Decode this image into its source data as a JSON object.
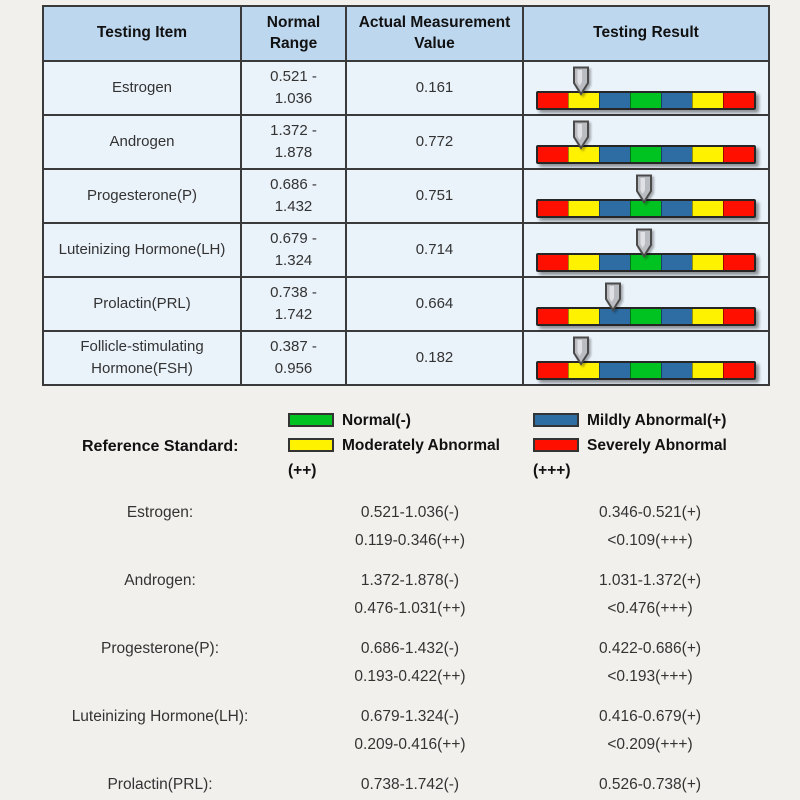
{
  "colors": {
    "red": "#FF0F00",
    "yellow": "#FFF200",
    "blue": "#2E6DA4",
    "green": "#00C322",
    "header_bg": "#BDD7EE",
    "cell_bg": "#EAF2FA",
    "page_bg": "#F2F0ED"
  },
  "table": {
    "headers": [
      "Testing Item",
      "Normal Range",
      "Actual Measurement Value",
      "Testing Result"
    ],
    "rows": [
      {
        "item": "Estrogen",
        "normal_range": "0.521 - 1.036",
        "actual_value": "0.161",
        "result_level": "moderately-abnormal",
        "arrow_percent": 20.5
      },
      {
        "item": "Androgen",
        "normal_range": "1.372 - 1.878",
        "actual_value": "0.772",
        "result_level": "moderately-abnormal",
        "arrow_percent": 20.5
      },
      {
        "item": "Progesterone(P)",
        "normal_range": "0.686 - 1.432",
        "actual_value": "0.751",
        "result_level": "normal",
        "arrow_percent": 49
      },
      {
        "item": "Luteinizing Hormone(LH)",
        "normal_range": "0.679 - 1.324",
        "actual_value": "0.714",
        "result_level": "normal",
        "arrow_percent": 49
      },
      {
        "item": "Prolactin(PRL)",
        "normal_range": "0.738 - 1.742",
        "actual_value": "0.664",
        "result_level": "mildly-abnormal",
        "arrow_percent": 35
      },
      {
        "item": "Follicle-stimulating Hormone(FSH)",
        "normal_range": "0.387 - 0.956",
        "actual_value": "0.182",
        "result_level": "moderately-abnormal",
        "arrow_percent": 20.5
      }
    ]
  },
  "result_bar": {
    "segment_colors": [
      "red",
      "yellow",
      "blue",
      "green",
      "blue",
      "yellow",
      "red"
    ]
  },
  "reference": {
    "title": "Reference Standard:",
    "legend": [
      {
        "color": "green",
        "label": "Normal(-)"
      },
      {
        "color": "blue",
        "label": "Mildly Abnormal(+)"
      },
      {
        "color": "yellow",
        "label": "Moderately Abnormal (++)"
      },
      {
        "color": "red",
        "label": "Severely Abnormal (+++)"
      }
    ],
    "entries": [
      {
        "label": "Estrogen:",
        "normal": "0.521-1.036(-)",
        "mild": "0.346-0.521(+)",
        "moderate": "0.119-0.346(++)",
        "severe": "<0.109(+++)"
      },
      {
        "label": "Androgen:",
        "normal": "1.372-1.878(-)",
        "mild": "1.031-1.372(+)",
        "moderate": "0.476-1.031(++)",
        "severe": "<0.476(+++)"
      },
      {
        "label": "Progesterone(P):",
        "normal": "0.686-1.432(-)",
        "mild": "0.422-0.686(+)",
        "moderate": "0.193-0.422(++)",
        "severe": "<0.193(+++)"
      },
      {
        "label": "Luteinizing Hormone(LH):",
        "normal": "0.679-1.324(-)",
        "mild": "0.416-0.679(+)",
        "moderate": "0.209-0.416(++)",
        "severe": "<0.209(+++)"
      },
      {
        "label": "Prolactin(PRL):",
        "normal": "0.738-1.742(-)",
        "mild": "0.526-0.738(+)"
      }
    ]
  }
}
